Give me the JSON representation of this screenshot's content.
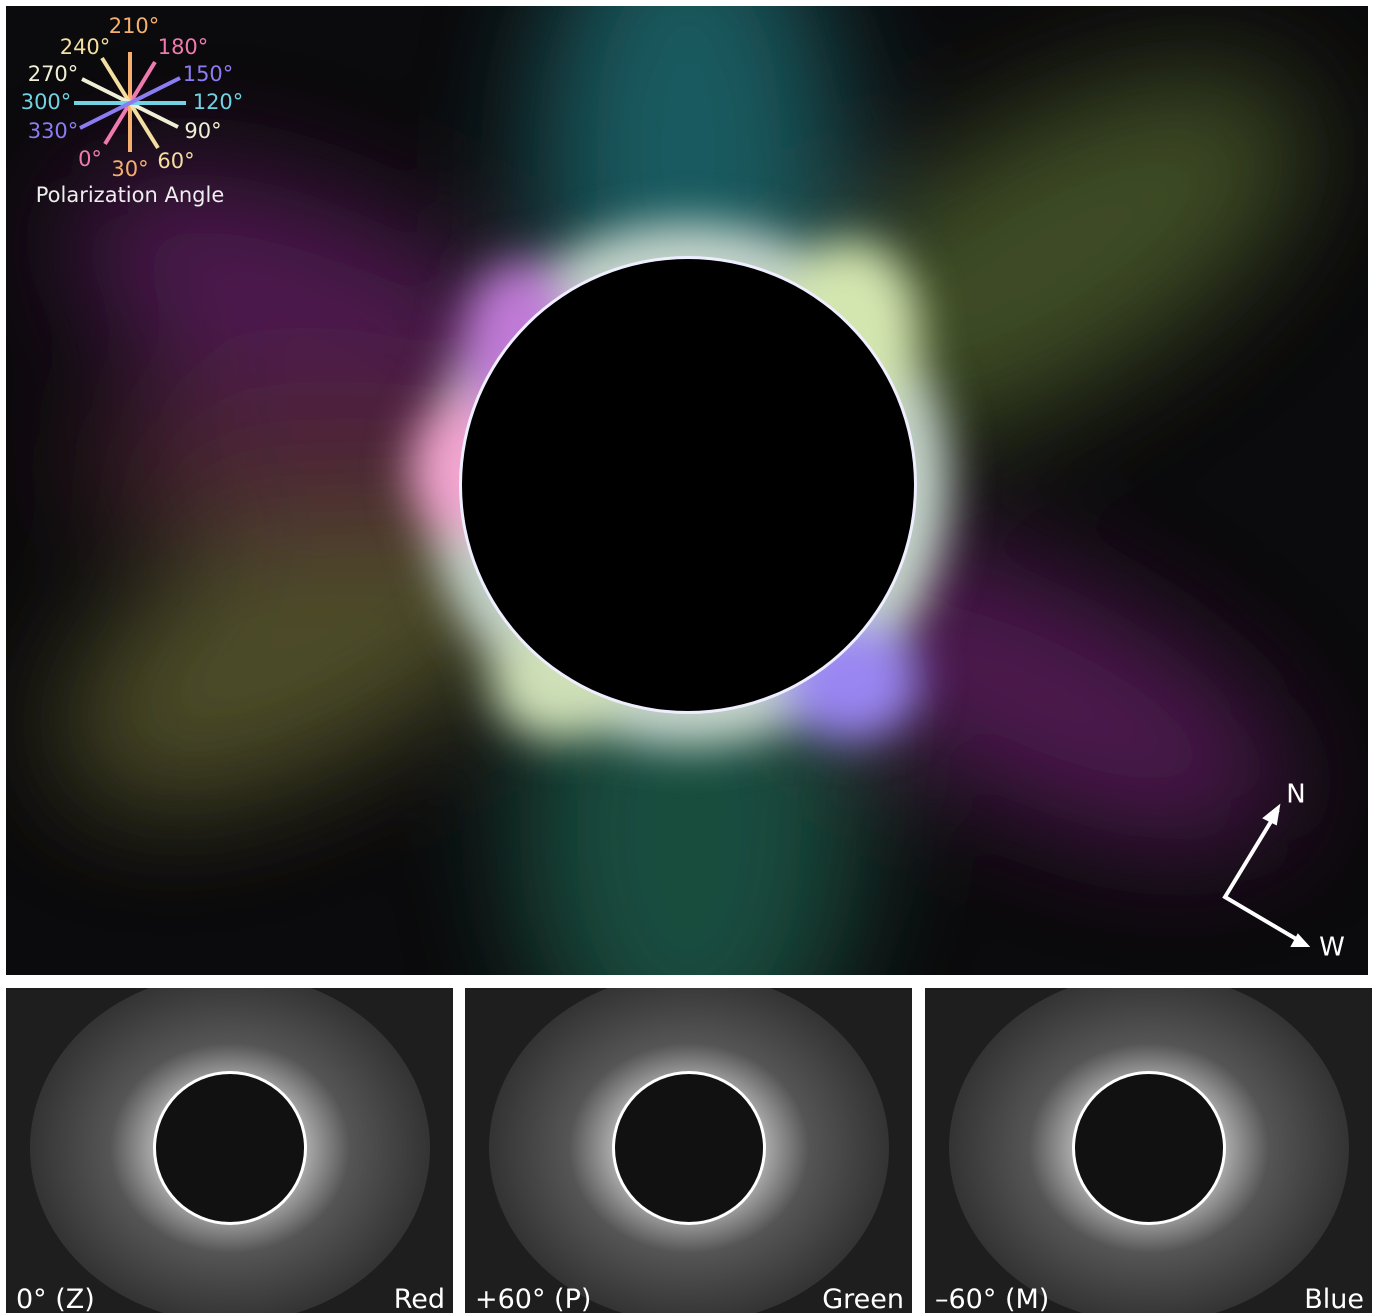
{
  "legend": {
    "title": "Polarization Angle",
    "angles": [
      {
        "label": "210°",
        "color": "#f5b070"
      },
      {
        "label": "240°",
        "color": "#f3dfa0"
      },
      {
        "label": "180°",
        "color": "#f07ab0"
      },
      {
        "label": "270°",
        "color": "#efefd6"
      },
      {
        "label": "150°",
        "color": "#8c7cf2"
      },
      {
        "label": "300°",
        "color": "#72d2e2"
      },
      {
        "label": "120°",
        "color": "#72d2e2"
      },
      {
        "label": "330°",
        "color": "#8c7cf2"
      },
      {
        "label": "90°",
        "color": "#efefd6"
      },
      {
        "label": "0°",
        "color": "#f07ab0"
      },
      {
        "label": "30°",
        "color": "#f5b070"
      },
      {
        "label": "60°",
        "color": "#f3dfa0"
      }
    ]
  },
  "compass": {
    "north": "N",
    "west": "W"
  },
  "panels": [
    {
      "angle": "0° (Z)",
      "channel": "Red"
    },
    {
      "angle": "+60° (P)",
      "channel": "Green"
    },
    {
      "angle": "–60° (M)",
      "channel": "Blue"
    }
  ]
}
